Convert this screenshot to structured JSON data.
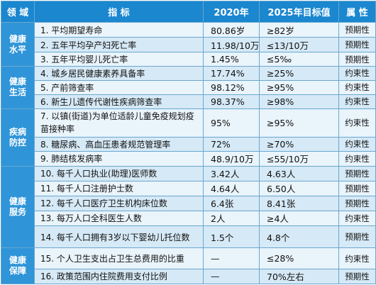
{
  "header": {
    "domain": "领 域",
    "indicator": "指 标",
    "y2020": "2020年",
    "y2025": "2025年目标值",
    "attribute": "属 性"
  },
  "rows": [
    {
      "domain": "健康\n水平",
      "indicator": "1. 平均期望寿命",
      "v2020": "80.86岁",
      "v2025": "≥82岁",
      "attr": "预期性"
    },
    {
      "indicator": "2. 五年平均孕产妇死亡率",
      "v2020": "11.98/10万",
      "v2025": "≤13/10万",
      "attr": "预期性"
    },
    {
      "indicator": "3. 五年平均婴儿死亡率",
      "v2020": "1.45%",
      "v2025": "≤5‰",
      "attr": "预期性"
    },
    {
      "domain": "健康\n生活",
      "indicator": "4. 城乡居民健康素养具备率",
      "v2020": "17.74%",
      "v2025": "≥25%",
      "attr": "约束性"
    },
    {
      "indicator": "5. 产前筛查率",
      "v2020": "98.12%",
      "v2025": "≥95%",
      "attr": "约束性"
    },
    {
      "indicator": "6. 新生儿遗传代谢性疾病筛查率",
      "v2020": "98.37%",
      "v2025": "≥98%",
      "attr": "约束性"
    },
    {
      "domain": "疾病\n防控",
      "indicator": "7. 以镇(街道)为单位适龄儿童免疫规划疫苗接种率",
      "v2020": "95%",
      "v2025": "≥95%",
      "attr": "约束性"
    },
    {
      "indicator": "8. 糖尿病、高血压患者规范管理率",
      "v2020": "72%",
      "v2025": "≥70%",
      "attr": "约束性"
    },
    {
      "indicator": "9. 肺结核发病率",
      "v2020": "48.9/10万",
      "v2025": "≤55/10万",
      "attr": "约束性"
    },
    {
      "domain": "健康\n服务",
      "indicator": "10. 每千人口执业(助理)医师数",
      "v2020": "3.42人",
      "v2025": "4.63人",
      "attr": "预期性"
    },
    {
      "indicator": "11. 每千人口注册护士数",
      "v2020": "4.64人",
      "v2025": "6.50人",
      "attr": "预期性"
    },
    {
      "indicator": "12. 每千人口医疗卫生机构床位数",
      "v2020": "6.4张",
      "v2025": "8.41张",
      "attr": "预期性"
    },
    {
      "indicator": "13. 每万人口全科医生人数",
      "v2020": "2人",
      "v2025": "≥4人",
      "attr": "约束性"
    },
    {
      "indicator": "14. 每千人口拥有3岁以下婴幼儿托位数",
      "v2020": "1.5个",
      "v2025": "4.8个",
      "attr": "预期性"
    },
    {
      "domain": "健康\n保障",
      "indicator": "15. 个人卫生支出占卫生总费用的比重",
      "v2020": "—",
      "v2025": "≤28%",
      "attr": "约束性"
    },
    {
      "indicator": "16. 政策范围内住院费用支付比例",
      "v2020": "—",
      "v2025": "70%左右",
      "attr": "预期性"
    }
  ]
}
